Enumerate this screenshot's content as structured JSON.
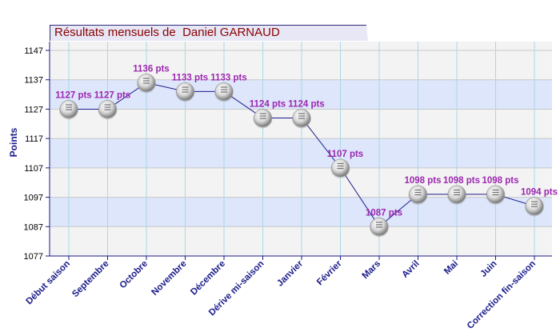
{
  "chart_data": {
    "type": "line",
    "title": "Résultats mensuels de  Daniel GARNAUD",
    "ylabel": "Points",
    "xlabel": "",
    "ylim": [
      1077,
      1150
    ],
    "yticks": [
      1077,
      1087,
      1097,
      1107,
      1117,
      1127,
      1137,
      1147
    ],
    "categories": [
      "Début saison",
      "Septembre",
      "Octobre",
      "Novembre",
      "Décembre",
      "Dérive mi-saison",
      "Janvier",
      "Février",
      "Mars",
      "Avril",
      "Mai",
      "Juin",
      "Correction fin-saison"
    ],
    "series": [
      {
        "values": [
          1127,
          1127,
          1136,
          1133,
          1133,
          1124,
          1124,
          1107,
          1087,
          1098,
          1098,
          1098,
          1094
        ],
        "labels": [
          "1127 pts",
          "1127 pts",
          "1136 pts",
          "1133 pts",
          "1133 pts",
          "1124 pts",
          "1124 pts",
          "1107 pts",
          "1087 pts",
          "1098 pts",
          "1098 pts",
          "1098 pts",
          "1094 pts"
        ]
      }
    ],
    "grid": true,
    "colors": {
      "line": "#1a1a8a",
      "band": "#dde6fb",
      "band_alt": "#f3f3f3",
      "label": "#9c27b0",
      "axis_text": "#1a1a8a",
      "title": "#8b0000"
    }
  }
}
